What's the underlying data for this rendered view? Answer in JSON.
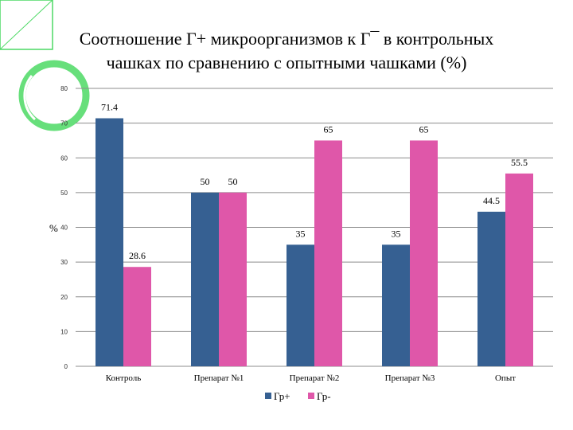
{
  "title_lines": [
    "Соотношение Г+ микроорганизмов к Г¯ в контрольных",
    "чашках по сравнению с опытными чашками (%)"
  ],
  "chart_data": {
    "type": "bar",
    "title": "Соотношение Г+ микроорганизмов к Г¯ в контрольных чашках по сравнению с опытными чашками (%)",
    "categories": [
      "Контроль",
      "Препарат №1",
      "Препарат №2",
      "Препарат №3",
      "Опыт"
    ],
    "series": [
      {
        "name": "Гр+",
        "values": [
          71.4,
          50,
          35,
          35,
          44.5
        ],
        "color": "#366092"
      },
      {
        "name": "Гр-",
        "values": [
          28.6,
          50,
          65,
          65,
          55.5
        ],
        "color": "#df57a9"
      }
    ],
    "data_labels": [
      [
        "71.4",
        "50",
        "35",
        "35",
        "44.5"
      ],
      [
        "28.6",
        "50",
        "65",
        "65",
        "55.5"
      ]
    ],
    "xlabel": "",
    "ylabel": "%",
    "ylim": [
      0,
      80
    ],
    "yticks": [
      0,
      10,
      20,
      30,
      40,
      50,
      60,
      70,
      80
    ],
    "grid": true,
    "legend": "bottom",
    "gridline_color": "#8c8c8c",
    "decor_color": "#4cd964"
  }
}
